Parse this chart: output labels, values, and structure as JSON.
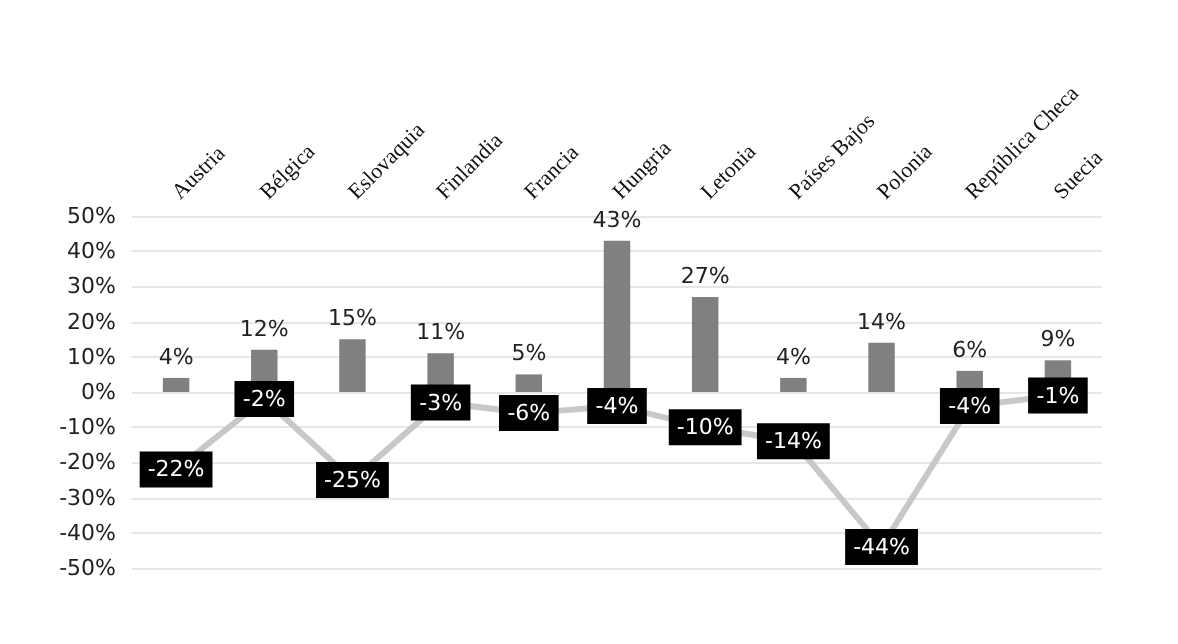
{
  "chart_data": {
    "type": "bar",
    "categories": [
      "Austria",
      "Bélgica",
      "Eslovaquia",
      "Finlandia",
      "Francia",
      "Hungria",
      "Letonia",
      "Países Bajos",
      "Polonia",
      "República Checa",
      "Suecia"
    ],
    "series": [
      {
        "color": "#808080",
        "values": [
          4,
          12,
          15,
          11,
          5,
          43,
          27,
          4,
          14,
          6,
          9
        ],
        "value_labels": [
          "4%",
          "12%",
          "15%",
          "11%",
          "5%",
          "43%",
          "27%",
          "4%",
          "14%",
          "6%",
          "9%"
        ]
      },
      {
        "type": "line",
        "color": "#c8c8c8",
        "marker": "square",
        "colors": [
          "#000000",
          "#000000",
          "#000000",
          "#000000",
          "#000000",
          "#000000",
          "#000000",
          "#000000",
          "#000000",
          "#000000",
          "#000000"
        ],
        "values": [
          -22,
          -2,
          -25,
          -3,
          -6,
          -4,
          -10,
          -14,
          -44,
          -4,
          -1
        ],
        "value_labels": [
          "-22%",
          "-2%",
          "-25%",
          "-3%",
          "-6%",
          "-4%",
          "-10%",
          "-14%",
          "-44%",
          "-4%",
          "-1%"
        ]
      }
    ],
    "ylim": [
      -50,
      50
    ],
    "yticks": [
      {
        "value": -50,
        "label": "-50%"
      },
      {
        "value": -40,
        "label": "-40%"
      },
      {
        "value": -30,
        "label": "-30%"
      },
      {
        "value": -20,
        "label": "-20%"
      },
      {
        "value": -10,
        "label": "-10%"
      },
      {
        "value": 0,
        "label": "0%"
      },
      {
        "value": 10,
        "label": "10%"
      },
      {
        "value": 20,
        "label": "20%"
      },
      {
        "value": 30,
        "label": "30%"
      },
      {
        "value": 40,
        "label": "40%"
      },
      {
        "value": 50,
        "label": "50%"
      }
    ],
    "grid": "y",
    "line_style": "solid"
  }
}
